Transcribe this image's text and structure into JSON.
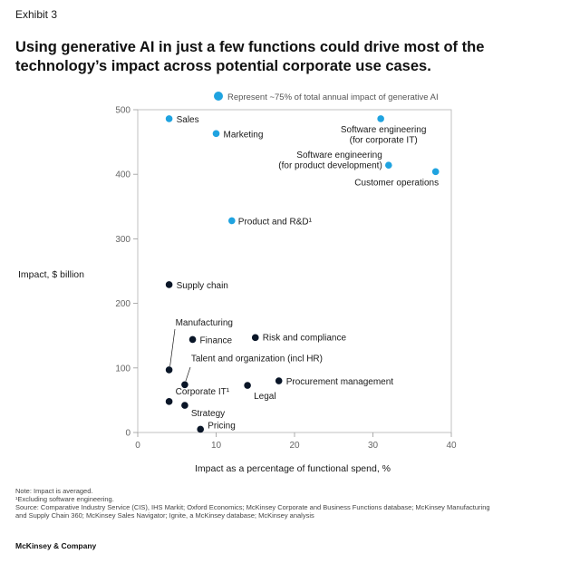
{
  "exhibit_label": "Exhibit 3",
  "title": "Using generative AI in just a few functions could drive most of the technology’s impact across potential corporate use cases.",
  "colors": {
    "highlight": "#1fa3e0",
    "other": "#0a1628",
    "axis": "#999999"
  },
  "chart_data": {
    "type": "scatter",
    "xlabel": "Impact as a percentage of functional spend, %",
    "ylabel": "Impact, $ billion",
    "xlim": [
      0,
      40
    ],
    "ylim": [
      0,
      500
    ],
    "x_ticks": [
      "0",
      "10",
      "20",
      "30",
      "40"
    ],
    "y_ticks": [
      "0",
      "100",
      "200",
      "300",
      "400",
      "500"
    ],
    "grid": false,
    "legend_position": "top",
    "legend": "Represent ~75% of total annual impact of generative AI",
    "points": [
      {
        "label": "Sales",
        "x": 4,
        "y": 486,
        "highlight": true
      },
      {
        "label": "Marketing",
        "x": 10,
        "y": 463,
        "highlight": true
      },
      {
        "label": "Software engineering (for corporate IT)",
        "x": 31,
        "y": 486,
        "highlight": true
      },
      {
        "label": "Software engineering (for product development)",
        "x": 32,
        "y": 414,
        "highlight": true
      },
      {
        "label": "Customer operations",
        "x": 38,
        "y": 404,
        "highlight": true
      },
      {
        "label": "Product and R&D¹",
        "x": 12,
        "y": 328,
        "highlight": true
      },
      {
        "label": "Supply chain",
        "x": 4,
        "y": 229,
        "highlight": false
      },
      {
        "label": "Manufacturing",
        "x": 4,
        "y": 97,
        "highlight": false
      },
      {
        "label": "Finance",
        "x": 7,
        "y": 144,
        "highlight": false
      },
      {
        "label": "Risk and compliance",
        "x": 15,
        "y": 147,
        "highlight": false
      },
      {
        "label": "Talent and organization (incl HR)",
        "x": 6,
        "y": 74,
        "highlight": false
      },
      {
        "label": "Procurement management",
        "x": 18,
        "y": 80,
        "highlight": false
      },
      {
        "label": "Legal",
        "x": 14,
        "y": 73,
        "highlight": false
      },
      {
        "label": "Corporate IT¹",
        "x": 4,
        "y": 48,
        "highlight": false
      },
      {
        "label": "Strategy",
        "x": 6,
        "y": 42,
        "highlight": false
      },
      {
        "label": "Pricing",
        "x": 8,
        "y": 5,
        "highlight": false
      }
    ]
  },
  "notes": [
    "Note: Impact is averaged.",
    "¹Excluding software engineering.",
    "Source: Comparative Industry Service (CIS), IHS Markit; Oxford Economics; McKinsey Corporate and Business Functions database; McKinsey Manufacturing",
    "and Supply Chain 360; McKinsey Sales Navigator; Ignite, a McKinsey database; McKinsey analysis"
  ],
  "brand": "McKinsey & Company"
}
